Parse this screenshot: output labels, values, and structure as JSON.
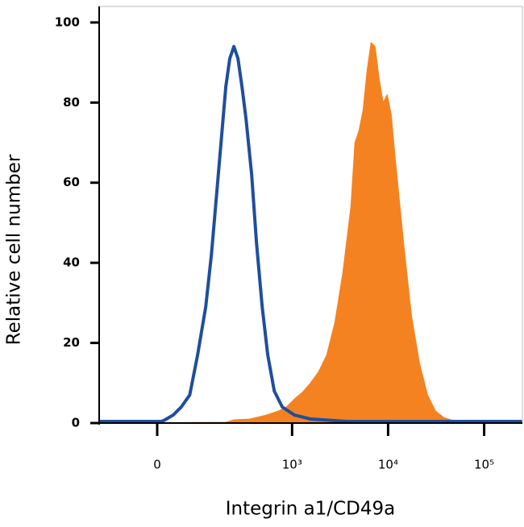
{
  "chart_data": {
    "type": "line",
    "x_label": "Integrin a1/CD49a",
    "y_label": "Relative cell number",
    "xscale": "biexponential",
    "xlim": [
      -149,
      250000
    ],
    "ylim": [
      0,
      104
    ],
    "xticks": [
      {
        "value": 0,
        "label": "0"
      },
      {
        "value": 1000,
        "label": "10³"
      },
      {
        "value": 10000,
        "label": "10⁴"
      },
      {
        "value": 100000,
        "label": "10⁵"
      }
    ],
    "yticks": [
      0,
      20,
      40,
      60,
      80,
      100
    ],
    "series": [
      {
        "color": "#f58220",
        "fill": true,
        "x": [
          -149,
          197,
          242,
          361,
          535,
          717,
          870,
          1059,
          1283,
          1556,
          1890,
          2295,
          2784,
          3378,
          4097,
          4513,
          4975,
          5479,
          6036,
          6648,
          7320,
          8066,
          8887,
          9792,
          10784,
          11881,
          14410,
          17483,
          21200,
          25738,
          31205,
          37920,
          50679,
          99777,
          250000
        ],
        "values": [
          0,
          0.2,
          0.8,
          1,
          2,
          3,
          4,
          6,
          7.7,
          10,
          12.8,
          17,
          25,
          37.5,
          54,
          70,
          73,
          78,
          88,
          95,
          94,
          86,
          80,
          82,
          77,
          66,
          45.6,
          27,
          15,
          7,
          3,
          1.4,
          0.4,
          0,
          0
        ]
      },
      {
        "color": "#1f4e9c",
        "fill": false,
        "x": [
          -149,
          8,
          15,
          31,
          48,
          68,
          89,
          114,
          134,
          153,
          177,
          197,
          218,
          242,
          268,
          296,
          327,
          376,
          423,
          486,
          556,
          651,
          790,
          1059,
          1556,
          3721,
          250000
        ],
        "values": [
          0.4,
          0.4,
          0.8,
          2,
          4,
          7,
          17,
          29,
          42,
          56,
          72,
          84,
          91,
          94,
          91,
          84,
          76,
          62,
          45,
          29,
          17,
          8,
          4,
          2,
          1,
          0.4,
          0.4
        ]
      }
    ]
  }
}
